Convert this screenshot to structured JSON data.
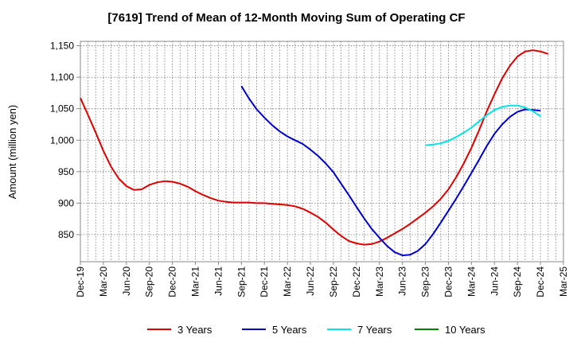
{
  "chart_data": {
    "type": "line",
    "title": "[7619]  Trend of Mean of 12-Month Moving Sum of Operating CF",
    "xlabel": "",
    "ylabel": "Amount (million yen)",
    "ylim": [
      807,
      1157
    ],
    "yticks": [
      850,
      900,
      950,
      1000,
      1050,
      1100,
      1150
    ],
    "ytick_labels": [
      "850",
      "900",
      "950",
      "1,000",
      "1,050",
      "1,100",
      "1,150"
    ],
    "x_start_month": "2019-12",
    "x_count": 64,
    "xtick_labels": [
      "Dec-19",
      "Mar-20",
      "Jun-20",
      "Sep-20",
      "Dec-20",
      "Mar-21",
      "Jun-21",
      "Sep-21",
      "Dec-21",
      "Mar-22",
      "Jun-22",
      "Sep-22",
      "Dec-22",
      "Mar-23",
      "Jun-23",
      "Sep-23",
      "Dec-23",
      "Mar-24",
      "Jun-24",
      "Sep-24",
      "Dec-24",
      "Mar-25"
    ],
    "grid": true,
    "legend_position": "bottom",
    "series": [
      {
        "name": "3 Years",
        "color": "#dd0000",
        "start_index": 0,
        "values": [
          1067,
          1040,
          1012,
          983,
          958,
          939,
          927,
          921,
          922,
          929,
          933,
          935,
          934,
          931,
          926,
          919,
          913,
          908,
          904,
          902,
          901,
          901,
          901,
          900,
          900,
          899,
          898,
          897,
          895,
          891,
          885,
          878,
          869,
          858,
          848,
          840,
          836,
          834,
          835,
          839,
          845,
          852,
          859,
          867,
          876,
          885,
          895,
          907,
          922,
          941,
          963,
          988,
          1016,
          1046,
          1073,
          1098,
          1118,
          1133,
          1141,
          1143,
          1141,
          1137
        ]
      },
      {
        "name": "5 Years",
        "color": "#0000cc",
        "start_index": 21,
        "values": [
          1086,
          1066,
          1049,
          1036,
          1024,
          1014,
          1006,
          1000,
          994,
          985,
          975,
          963,
          949,
          931,
          913,
          894,
          876,
          859,
          845,
          832,
          822,
          817,
          818,
          824,
          835,
          851,
          869,
          888,
          907,
          927,
          948,
          969,
          991,
          1010,
          1025,
          1037,
          1045,
          1049,
          1048,
          1047
        ]
      },
      {
        "name": "7 Years",
        "color": "#00e5e5",
        "start_index": 45,
        "values": [
          992,
          993,
          995,
          999,
          1005,
          1012,
          1020,
          1030,
          1040,
          1048,
          1053,
          1055,
          1055,
          1052,
          1046,
          1038
        ]
      },
      {
        "name": "10 Years",
        "color": "#008000",
        "start_index": 0,
        "values": []
      }
    ]
  }
}
